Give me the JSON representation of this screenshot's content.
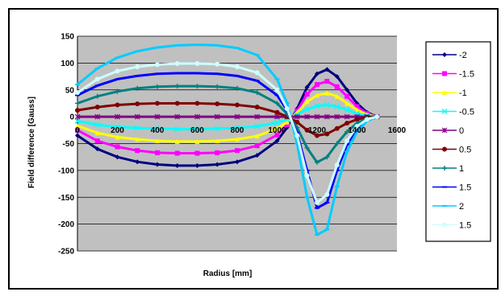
{
  "chart_data": {
    "type": "line",
    "title": "",
    "xlabel": "Radius [mm]",
    "ylabel": "Field difference [Gauss]",
    "xlim": [
      0,
      1600
    ],
    "ylim": [
      -250,
      150
    ],
    "x_ticks": [
      0,
      200,
      400,
      600,
      800,
      1000,
      1200,
      1400,
      1600
    ],
    "y_ticks": [
      -250,
      -200,
      -150,
      -100,
      -50,
      0,
      50,
      100,
      150
    ],
    "grid": "horizontal",
    "plot_background": "#c0c0c0",
    "legend_position": "right",
    "x": [
      0,
      100,
      200,
      300,
      400,
      500,
      600,
      700,
      800,
      900,
      1000,
      1050,
      1100,
      1150,
      1200,
      1250,
      1300,
      1350,
      1400,
      1450,
      1500
    ],
    "series": [
      {
        "name": "-2",
        "color": "#000080",
        "marker": "diamond",
        "values": [
          -35,
          -60,
          -75,
          -84,
          -89,
          -91,
          -91,
          -89,
          -84,
          -72,
          -45,
          -20,
          15,
          55,
          80,
          88,
          75,
          50,
          25,
          8,
          0
        ]
      },
      {
        "name": "-1.5",
        "color": "#ff00ff",
        "marker": "square",
        "values": [
          -25,
          -45,
          -56,
          -63,
          -67,
          -68,
          -68,
          -67,
          -63,
          -54,
          -34,
          -15,
          11,
          42,
          60,
          66,
          56,
          38,
          19,
          6,
          0
        ]
      },
      {
        "name": "-1",
        "color": "#ffff00",
        "marker": "triangle",
        "values": [
          -17,
          -30,
          -38,
          -42,
          -45,
          -46,
          -46,
          -45,
          -42,
          -36,
          -22,
          -10,
          8,
          28,
          40,
          44,
          38,
          25,
          13,
          4,
          0
        ]
      },
      {
        "name": "-0.5",
        "color": "#00ffff",
        "marker": "x",
        "values": [
          -8,
          -15,
          -19,
          -21,
          -22,
          -23,
          -23,
          -22,
          -21,
          -18,
          -11,
          -5,
          4,
          14,
          20,
          22,
          19,
          13,
          6,
          2,
          0
        ]
      },
      {
        "name": "0",
        "color": "#800080",
        "marker": "star",
        "values": [
          0,
          0,
          0,
          0,
          0,
          0,
          0,
          0,
          0,
          0,
          0,
          0,
          0,
          0,
          0,
          0,
          0,
          0,
          0,
          0,
          0
        ]
      },
      {
        "name": "0.5",
        "color": "#800000",
        "marker": "circle",
        "values": [
          12,
          18,
          22,
          24,
          25,
          25,
          25,
          24,
          22,
          18,
          8,
          0,
          -10,
          -25,
          -35,
          -32,
          -22,
          -12,
          -5,
          -1,
          0
        ]
      },
      {
        "name": "1",
        "color": "#008080",
        "marker": "plus",
        "values": [
          25,
          38,
          47,
          53,
          56,
          57,
          57,
          56,
          53,
          45,
          25,
          5,
          -20,
          -58,
          -85,
          -75,
          -50,
          -28,
          -12,
          -3,
          0
        ]
      },
      {
        "name": "1.5",
        "color": "#0000ff",
        "marker": "dash",
        "values": [
          40,
          58,
          70,
          76,
          80,
          81,
          81,
          80,
          76,
          67,
          40,
          12,
          -30,
          -100,
          -170,
          -160,
          -100,
          -52,
          -22,
          -6,
          0
        ]
      },
      {
        "name": "2",
        "color": "#00ccff",
        "marker": "dash",
        "values": [
          60,
          90,
          110,
          122,
          129,
          133,
          134,
          133,
          128,
          115,
          70,
          25,
          -50,
          -150,
          -220,
          -210,
          -130,
          -65,
          -28,
          -8,
          0
        ]
      },
      {
        "name": "1.5",
        "color": "#ccffff",
        "marker": "circle",
        "values": [
          45,
          70,
          85,
          93,
          97,
          99,
          99,
          98,
          93,
          82,
          50,
          15,
          -35,
          -110,
          -160,
          -145,
          -90,
          -45,
          -18,
          -5,
          0
        ]
      }
    ]
  }
}
